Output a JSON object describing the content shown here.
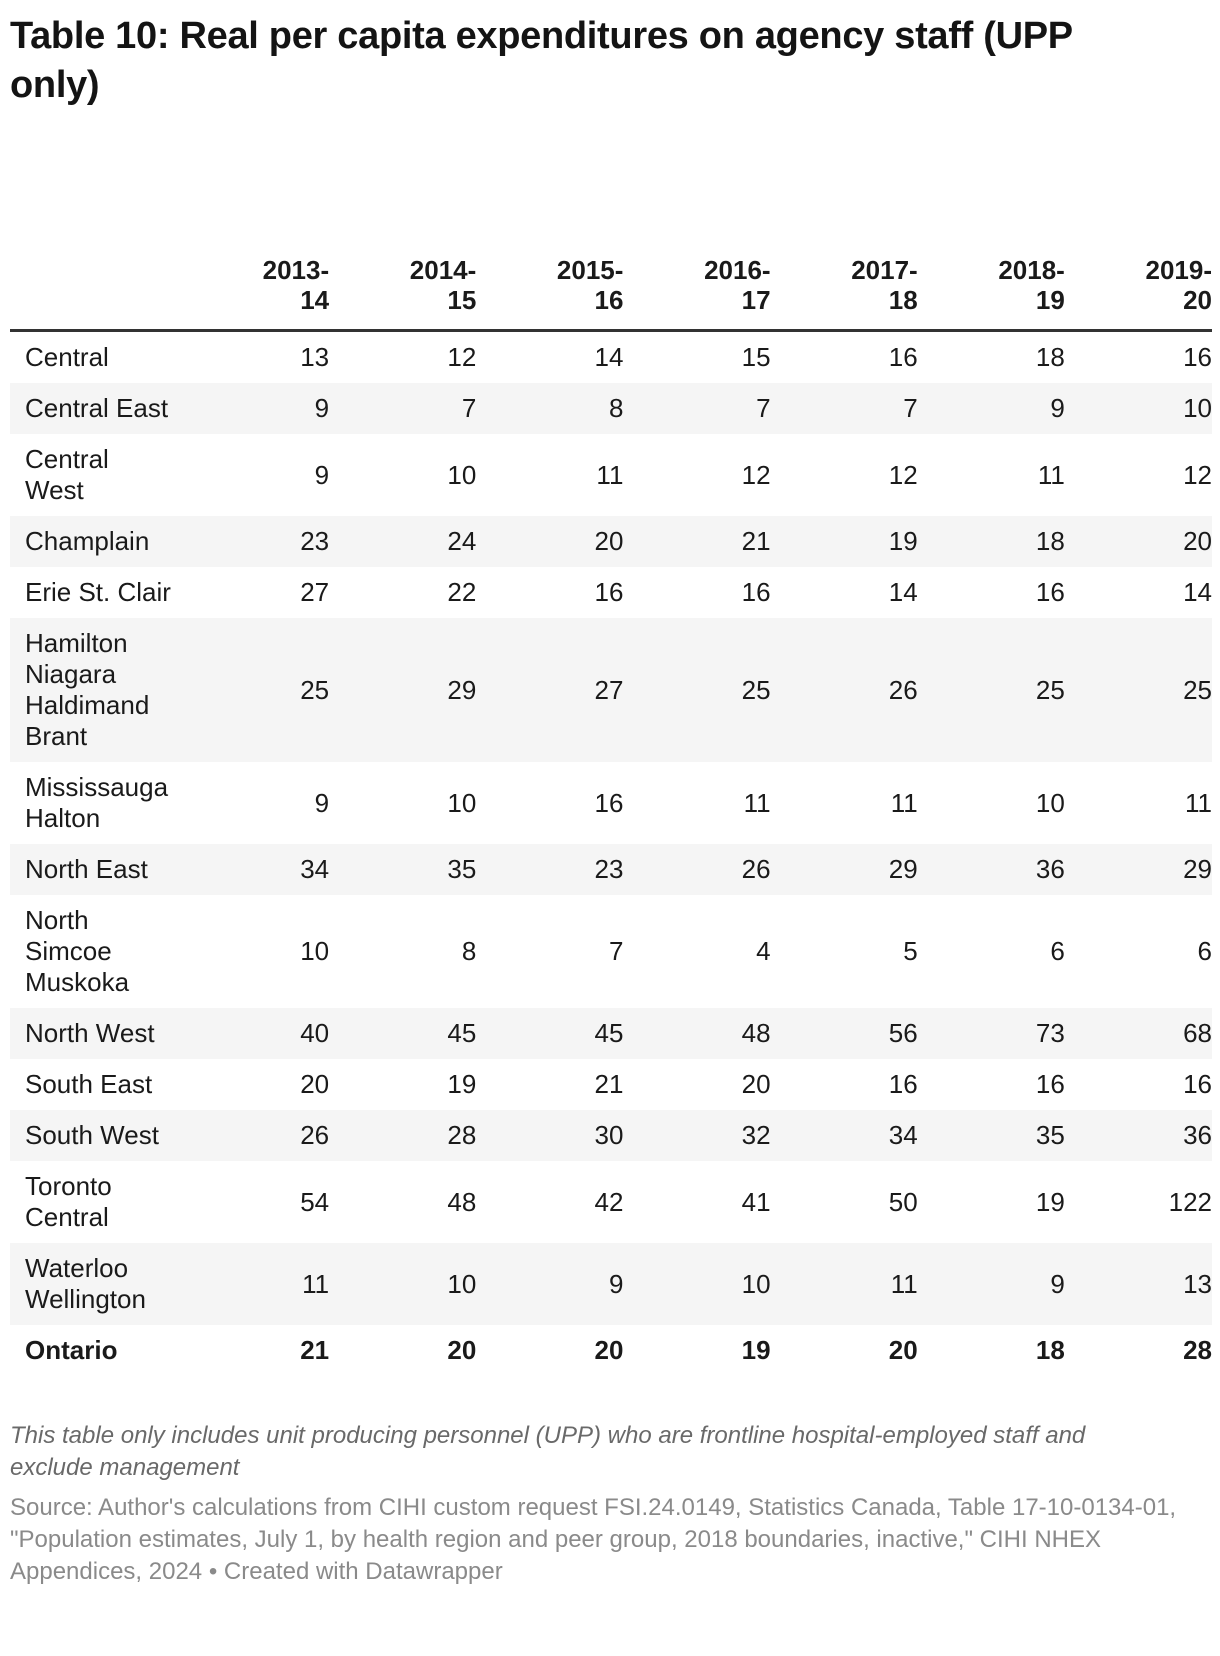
{
  "header": {
    "title_display": "Table 10: Real per capita expenditures on agency staff (UPP\nonly)"
  },
  "chart_data": {
    "type": "table",
    "title": "Table 10: Real per capita expenditures on agency staff (UPP only)",
    "columns": [
      "2013-14",
      "2014-15",
      "2015-16",
      "2016-17",
      "2017-18",
      "2018-19",
      "2019-20"
    ],
    "columns_display": [
      "2013-\n14",
      "2014-\n15",
      "2015-\n16",
      "2016-\n17",
      "2017-\n18",
      "2018-\n19",
      "2019-\n20"
    ],
    "region_column_label": "",
    "rows": [
      {
        "name": "Central",
        "display": "Central",
        "values": [
          13,
          12,
          14,
          15,
          16,
          18,
          16
        ],
        "summary": false
      },
      {
        "name": "Central East",
        "display": "Central East",
        "values": [
          9,
          7,
          8,
          7,
          7,
          9,
          10
        ],
        "summary": false
      },
      {
        "name": "Central West",
        "display": "Central\nWest",
        "values": [
          9,
          10,
          11,
          12,
          12,
          11,
          12
        ],
        "summary": false
      },
      {
        "name": "Champlain",
        "display": "Champlain",
        "values": [
          23,
          24,
          20,
          21,
          19,
          18,
          20
        ],
        "summary": false
      },
      {
        "name": "Erie St. Clair",
        "display": "Erie St. Clair",
        "values": [
          27,
          22,
          16,
          16,
          14,
          16,
          14
        ],
        "summary": false
      },
      {
        "name": "Hamilton Niagara Haldimand Brant",
        "display": "Hamilton\nNiagara\nHaldimand\nBrant",
        "values": [
          25,
          29,
          27,
          25,
          26,
          25,
          25
        ],
        "summary": false
      },
      {
        "name": "Mississauga Halton",
        "display": "Mississauga\nHalton",
        "values": [
          9,
          10,
          16,
          11,
          11,
          10,
          11
        ],
        "summary": false
      },
      {
        "name": "North East",
        "display": "North East",
        "values": [
          34,
          35,
          23,
          26,
          29,
          36,
          29
        ],
        "summary": false
      },
      {
        "name": "North Simcoe Muskoka",
        "display": "North\nSimcoe\nMuskoka",
        "values": [
          10,
          8,
          7,
          4,
          5,
          6,
          6
        ],
        "summary": false
      },
      {
        "name": "North West",
        "display": "North West",
        "values": [
          40,
          45,
          45,
          48,
          56,
          73,
          68
        ],
        "summary": false
      },
      {
        "name": "South East",
        "display": "South East",
        "values": [
          20,
          19,
          21,
          20,
          16,
          16,
          16
        ],
        "summary": false
      },
      {
        "name": "South West",
        "display": "South West",
        "values": [
          26,
          28,
          30,
          32,
          34,
          35,
          36
        ],
        "summary": false
      },
      {
        "name": "Toronto Central",
        "display": "Toronto\nCentral",
        "values": [
          54,
          48,
          42,
          41,
          50,
          19,
          122
        ],
        "summary": false
      },
      {
        "name": "Waterloo Wellington",
        "display": "Waterloo\nWellington",
        "values": [
          11,
          10,
          9,
          10,
          11,
          9,
          13
        ],
        "summary": false
      },
      {
        "name": "Ontario",
        "display": "Ontario",
        "values": [
          21,
          20,
          20,
          19,
          20,
          18,
          28
        ],
        "summary": true
      }
    ]
  },
  "footer": {
    "note": "This table only includes unit producing personnel (UPP) who are frontline hospital-employed staff and exclude management",
    "source": "Source: Author's calculations from CIHI custom request FSI.24.0149, Statistics Canada, Table 17-10-0134-01, \"Population estimates, July 1, by health region and peer group, 2018 boundaries, inactive,\" CIHI NHEX Appendices, 2024",
    "separator": "•",
    "credit": "Created with Datawrapper"
  },
  "colors": {
    "text": "#1a1a1a",
    "stripe": "#f5f5f5",
    "header_border": "#333333",
    "note_text": "#696969",
    "source_text": "#8a8a8a"
  }
}
